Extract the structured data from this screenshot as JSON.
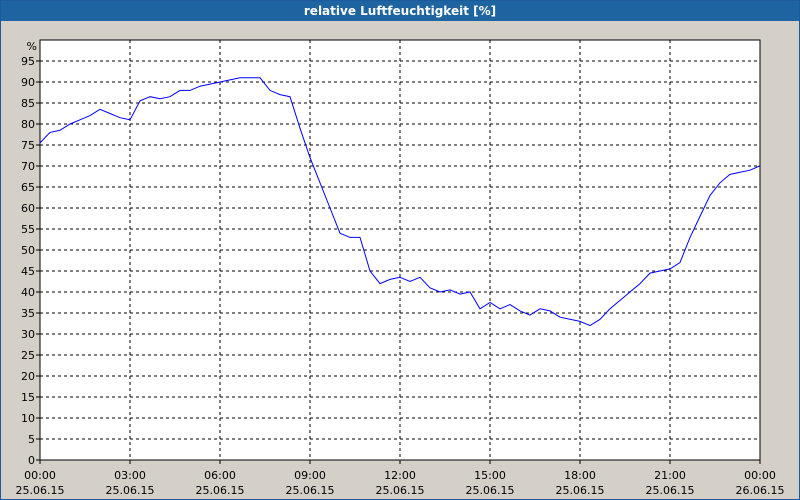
{
  "title": "relative Luftfeuchtigkeit [%]",
  "colors": {
    "background": "#d4d0c8",
    "plot_background": "#ffffff",
    "title_bar": "#1e64a0",
    "line": "#0000ff",
    "grid": "#000000"
  },
  "chart_data": {
    "type": "line",
    "title": "relative Luftfeuchtigkeit [%]",
    "ylabel": "%",
    "xlabel": "",
    "ylim": [
      0,
      100
    ],
    "yticks": [
      0,
      5,
      10,
      15,
      20,
      25,
      30,
      35,
      40,
      45,
      50,
      55,
      60,
      65,
      70,
      75,
      80,
      85,
      90,
      95
    ],
    "xlim": [
      "25.06.15 00:00",
      "26.06.15 00:00"
    ],
    "xtick_labels": [
      {
        "time": "00:00",
        "date": "25.06.15"
      },
      {
        "time": "03:00",
        "date": "25.06.15"
      },
      {
        "time": "06:00",
        "date": "25.06.15"
      },
      {
        "time": "09:00",
        "date": "25.06.15"
      },
      {
        "time": "12:00",
        "date": "25.06.15"
      },
      {
        "time": "15:00",
        "date": "25.06.15"
      },
      {
        "time": "18:00",
        "date": "25.06.15"
      },
      {
        "time": "21:00",
        "date": "25.06.15"
      },
      {
        "time": "00:00",
        "date": "26.06.15"
      }
    ],
    "grid": true,
    "grid_style": "dashed",
    "series": [
      {
        "color": "#0000ff",
        "x": [
          "00:00",
          "00:20",
          "00:40",
          "01:00",
          "01:20",
          "01:40",
          "02:00",
          "02:20",
          "02:40",
          "03:00",
          "03:20",
          "03:40",
          "04:00",
          "04:20",
          "04:40",
          "05:00",
          "05:20",
          "05:40",
          "06:00",
          "06:20",
          "06:40",
          "07:00",
          "07:20",
          "07:40",
          "08:00",
          "08:20",
          "08:40",
          "09:00",
          "09:20",
          "09:40",
          "10:00",
          "10:20",
          "10:40",
          "11:00",
          "11:20",
          "11:40",
          "12:00",
          "12:20",
          "12:40",
          "13:00",
          "13:20",
          "13:40",
          "14:00",
          "14:20",
          "14:40",
          "15:00",
          "15:20",
          "15:40",
          "16:00",
          "16:20",
          "16:40",
          "17:00",
          "17:20",
          "17:40",
          "18:00",
          "18:20",
          "18:40",
          "19:00",
          "19:20",
          "19:40",
          "20:00",
          "20:20",
          "20:40",
          "21:00",
          "21:20",
          "21:40",
          "22:00",
          "22:20",
          "22:40",
          "23:00",
          "23:20",
          "23:40",
          "23:59"
        ],
        "y": [
          75.5,
          78,
          78.5,
          80,
          81,
          82,
          83.5,
          82.5,
          81.5,
          81,
          85.5,
          86.5,
          86,
          86.5,
          88,
          88,
          89,
          89.5,
          90,
          90.5,
          91,
          91,
          91,
          88,
          87,
          86.5,
          79,
          72,
          66,
          60,
          54,
          53,
          53,
          45,
          42,
          43,
          43.5,
          42.5,
          43.5,
          41,
          40,
          40.5,
          39.5,
          40,
          36,
          37.5,
          36,
          37,
          35.5,
          34.5,
          36,
          35.5,
          34,
          33.5,
          33,
          32,
          33.5,
          36,
          38,
          40,
          42,
          44.5,
          45,
          45.5,
          47,
          53,
          58,
          63,
          66,
          68,
          68.5,
          69,
          70
        ]
      }
    ]
  }
}
